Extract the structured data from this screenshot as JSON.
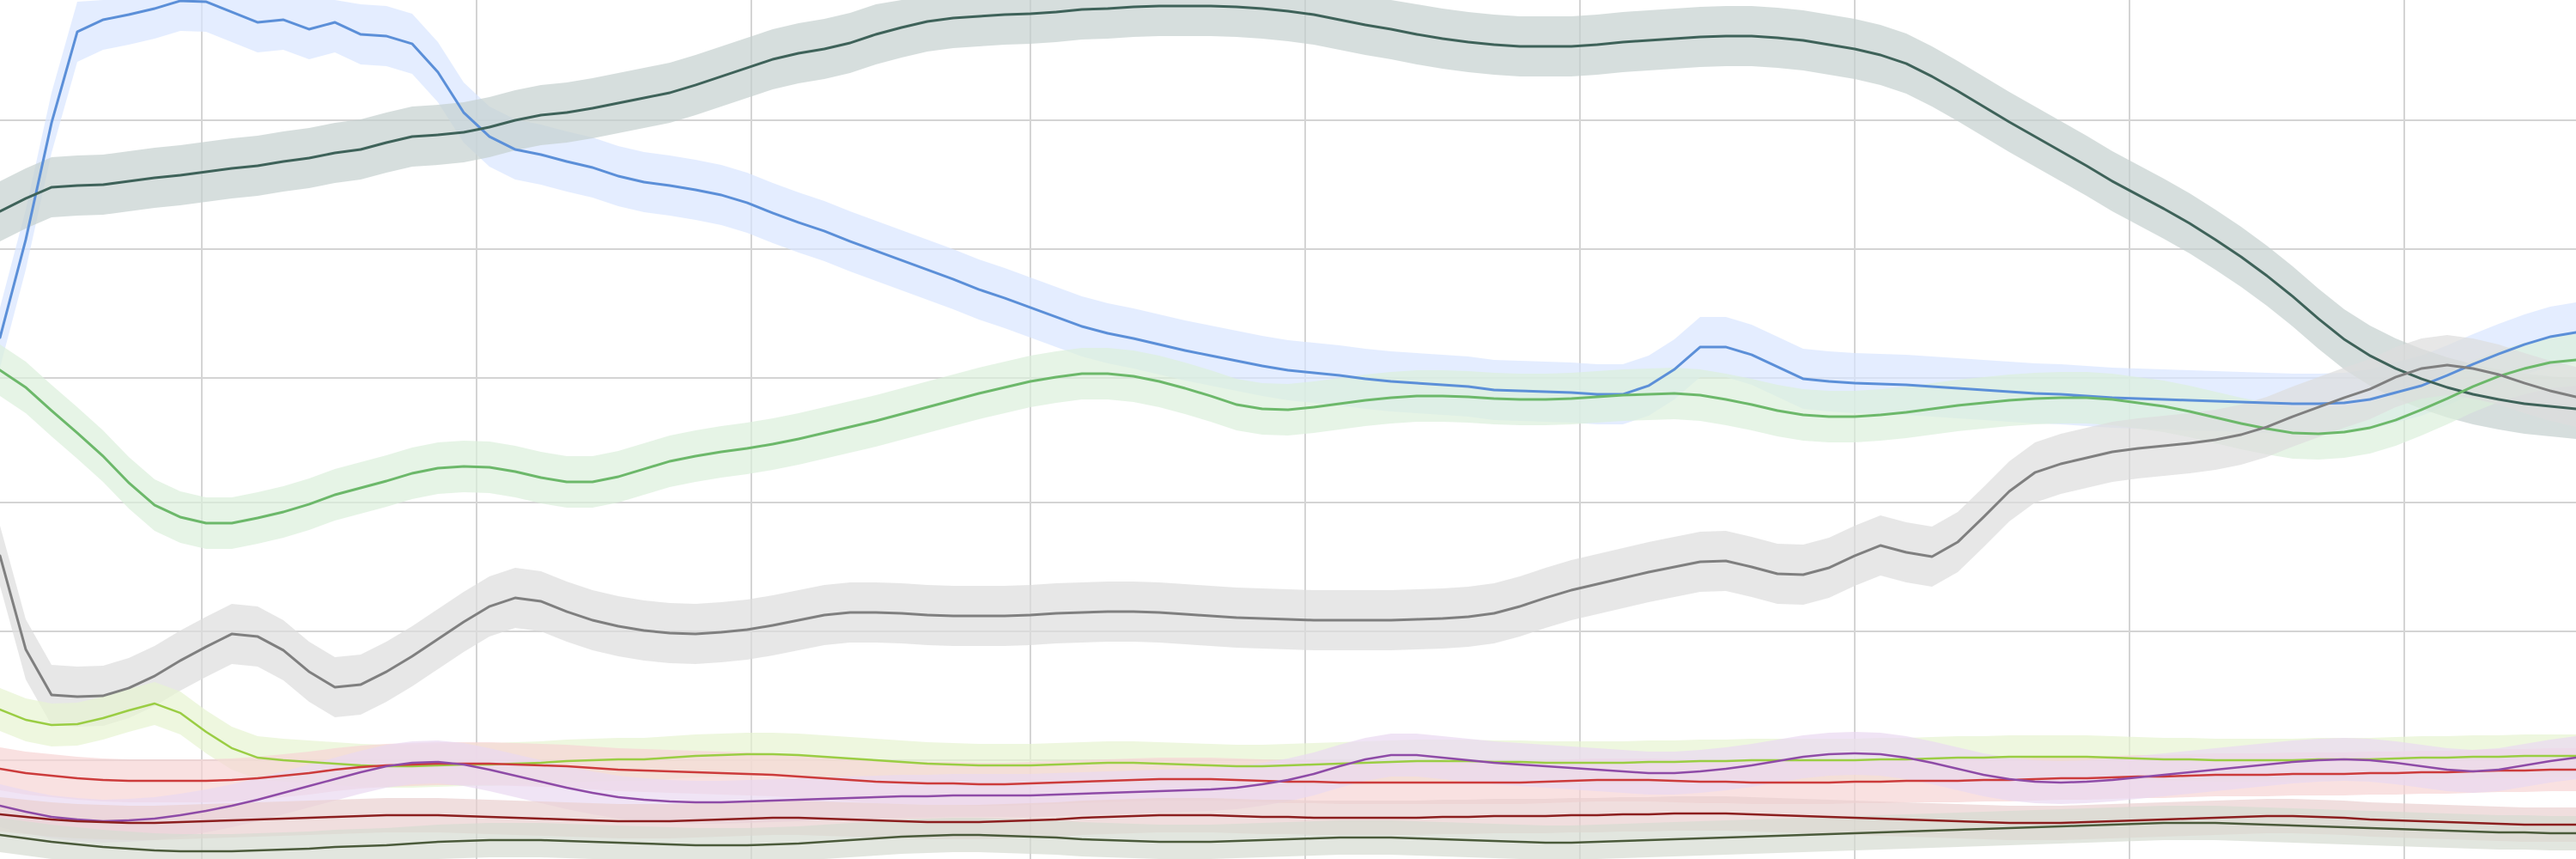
{
  "chart_data": {
    "type": "line",
    "title": "",
    "xlabel": "",
    "ylabel": "",
    "grid": true,
    "legend": "none",
    "xlim": [
      0,
      1000
    ],
    "ylim": [
      0,
      100
    ],
    "x": [
      0,
      10,
      20,
      30,
      40,
      50,
      60,
      70,
      80,
      90,
      100,
      110,
      120,
      130,
      140,
      150,
      160,
      170,
      180,
      190,
      200,
      210,
      220,
      230,
      240,
      250,
      260,
      270,
      280,
      290,
      300,
      310,
      320,
      330,
      340,
      350,
      360,
      370,
      380,
      390,
      400,
      410,
      420,
      430,
      440,
      450,
      460,
      470,
      480,
      490,
      500,
      510,
      520,
      530,
      540,
      550,
      560,
      570,
      580,
      590,
      600,
      610,
      620,
      630,
      640,
      650,
      660,
      670,
      680,
      690,
      700,
      710,
      720,
      730,
      740,
      750,
      760,
      770,
      780,
      790,
      800,
      810,
      820,
      830,
      840,
      850,
      860,
      870,
      880,
      890,
      900,
      910,
      920,
      930,
      940,
      950,
      960,
      970,
      980,
      990,
      1000
    ],
    "series": [
      {
        "name": "blue",
        "color": "#5B8FD8",
        "band_color": "#D9E5FF",
        "band_width": 7,
        "values": [
          60.7,
          72.1,
          85.7,
          96.3,
          97.7,
          98.3,
          99.0,
          99.9,
          99.8,
          98.6,
          97.4,
          97.7,
          96.6,
          97.4,
          96.0,
          95.8,
          94.9,
          91.6,
          86.9,
          84.1,
          82.6,
          82.0,
          81.2,
          80.5,
          79.5,
          78.8,
          78.4,
          77.9,
          77.3,
          76.4,
          75.2,
          74.1,
          73.1,
          71.9,
          70.8,
          69.7,
          68.6,
          67.5,
          66.3,
          65.3,
          64.2,
          63.1,
          62.0,
          61.2,
          60.6,
          59.9,
          59.2,
          58.6,
          58.0,
          57.4,
          56.9,
          56.6,
          56.3,
          55.9,
          55.6,
          55.4,
          55.2,
          55.0,
          54.6,
          54.5,
          54.4,
          54.3,
          54.1,
          54.1,
          55.1,
          57.0,
          59.6,
          59.6,
          58.7,
          57.3,
          55.9,
          55.6,
          55.4,
          55.3,
          55.2,
          55.0,
          54.8,
          54.6,
          54.4,
          54.2,
          54.1,
          53.9,
          53.7,
          53.6,
          53.5,
          53.4,
          53.3,
          53.2,
          53.1,
          53.0,
          53.0,
          53.1,
          53.5,
          54.3,
          55.1,
          56.3,
          57.6,
          58.8,
          59.9,
          60.8,
          61.3
        ]
      },
      {
        "name": "dark-teal",
        "color": "#3E6259",
        "band_color": "#C5D0CF",
        "band_width": 7,
        "values": [
          75.4,
          76.9,
          78.2,
          78.4,
          78.5,
          78.9,
          79.3,
          79.6,
          80.0,
          80.4,
          80.7,
          81.2,
          81.6,
          82.2,
          82.6,
          83.4,
          84.1,
          84.3,
          84.6,
          85.2,
          86.0,
          86.6,
          86.9,
          87.4,
          88.0,
          88.6,
          89.2,
          90.1,
          91.1,
          92.1,
          93.1,
          93.8,
          94.3,
          95.0,
          96.0,
          96.8,
          97.5,
          97.9,
          98.1,
          98.3,
          98.4,
          98.6,
          98.9,
          99.0,
          99.2,
          99.3,
          99.3,
          99.3,
          99.2,
          99.0,
          98.7,
          98.3,
          97.7,
          97.1,
          96.6,
          96.0,
          95.5,
          95.1,
          94.8,
          94.6,
          94.6,
          94.6,
          94.8,
          95.1,
          95.3,
          95.5,
          95.7,
          95.8,
          95.8,
          95.6,
          95.3,
          94.8,
          94.3,
          93.6,
          92.6,
          91.1,
          89.4,
          87.6,
          85.8,
          84.1,
          82.4,
          80.7,
          78.9,
          77.3,
          75.7,
          74.0,
          72.1,
          70.1,
          67.9,
          65.5,
          62.9,
          60.5,
          58.6,
          57.1,
          55.9,
          54.9,
          54.1,
          53.5,
          53.0,
          52.7,
          52.4
        ]
      },
      {
        "name": "green",
        "color": "#6CB86A",
        "band_color": "#DCEFDB",
        "band_width": 6,
        "values": [
          56.9,
          54.9,
          52.2,
          49.6,
          46.9,
          43.8,
          41.2,
          39.8,
          39.1,
          39.1,
          39.7,
          40.4,
          41.3,
          42.4,
          43.2,
          44.0,
          44.9,
          45.5,
          45.7,
          45.6,
          45.1,
          44.4,
          43.9,
          43.9,
          44.5,
          45.4,
          46.3,
          46.9,
          47.4,
          47.8,
          48.3,
          48.9,
          49.6,
          50.3,
          51.0,
          51.8,
          52.6,
          53.4,
          54.2,
          54.9,
          55.6,
          56.1,
          56.5,
          56.5,
          56.2,
          55.6,
          54.8,
          53.9,
          52.9,
          52.4,
          52.3,
          52.6,
          53.0,
          53.4,
          53.7,
          53.9,
          53.9,
          53.8,
          53.6,
          53.5,
          53.5,
          53.6,
          53.8,
          54.0,
          54.1,
          54.2,
          54.0,
          53.5,
          52.9,
          52.2,
          51.7,
          51.5,
          51.5,
          51.7,
          52.0,
          52.4,
          52.8,
          53.1,
          53.4,
          53.6,
          53.7,
          53.7,
          53.5,
          53.1,
          52.7,
          52.1,
          51.4,
          50.7,
          50.1,
          49.6,
          49.5,
          49.7,
          50.2,
          51.1,
          52.3,
          53.6,
          55.0,
          56.2,
          57.1,
          57.8,
          58.1
        ]
      },
      {
        "name": "gray",
        "color": "#7F7F7F",
        "band_color": "#DDDDDD",
        "band_width": 7,
        "values": [
          35.3,
          24.4,
          19.1,
          18.9,
          19.0,
          19.9,
          21.3,
          23.1,
          24.7,
          26.2,
          25.9,
          24.3,
          21.8,
          20.0,
          20.3,
          21.8,
          23.6,
          25.6,
          27.6,
          29.4,
          30.4,
          30.0,
          28.8,
          27.8,
          27.1,
          26.6,
          26.3,
          26.2,
          26.4,
          26.7,
          27.2,
          27.8,
          28.4,
          28.7,
          28.7,
          28.6,
          28.4,
          28.3,
          28.3,
          28.3,
          28.4,
          28.6,
          28.7,
          28.8,
          28.8,
          28.7,
          28.5,
          28.3,
          28.1,
          28.0,
          27.9,
          27.8,
          27.8,
          27.8,
          27.8,
          27.9,
          28.0,
          28.2,
          28.6,
          29.4,
          30.4,
          31.3,
          32.0,
          32.7,
          33.4,
          34.0,
          34.6,
          34.7,
          34.0,
          33.2,
          33.1,
          33.9,
          35.3,
          36.5,
          35.7,
          35.2,
          36.9,
          39.8,
          42.8,
          45.0,
          46.0,
          46.7,
          47.4,
          47.8,
          48.1,
          48.4,
          48.8,
          49.4,
          50.3,
          51.5,
          52.6,
          53.7,
          54.7,
          56.1,
          57.1,
          57.5,
          57.1,
          56.4,
          55.4,
          54.5,
          53.8
        ]
      },
      {
        "name": "yellow-green",
        "color": "#9ACD43",
        "band_color": "#E7F4D1",
        "band_width": 5,
        "values": [
          17.4,
          16.2,
          15.6,
          15.7,
          16.4,
          17.3,
          18.1,
          17.0,
          14.8,
          12.9,
          11.8,
          11.5,
          11.3,
          11.1,
          10.9,
          10.8,
          10.8,
          10.9,
          11.0,
          11.0,
          11.1,
          11.2,
          11.4,
          11.5,
          11.6,
          11.6,
          11.8,
          12.0,
          12.1,
          12.2,
          12.2,
          12.1,
          11.9,
          11.7,
          11.5,
          11.3,
          11.1,
          11.0,
          10.9,
          10.9,
          10.9,
          11.0,
          11.1,
          11.2,
          11.2,
          11.1,
          11.0,
          10.9,
          10.8,
          10.8,
          10.9,
          11.0,
          11.1,
          11.2,
          11.3,
          11.4,
          11.4,
          11.4,
          11.3,
          11.3,
          11.2,
          11.2,
          11.2,
          11.2,
          11.3,
          11.3,
          11.4,
          11.4,
          11.5,
          11.5,
          11.5,
          11.5,
          11.5,
          11.6,
          11.6,
          11.7,
          11.8,
          11.8,
          11.9,
          11.9,
          11.9,
          11.9,
          11.8,
          11.7,
          11.6,
          11.6,
          11.5,
          11.5,
          11.5,
          11.5,
          11.6,
          11.6,
          11.6,
          11.7,
          11.8,
          11.8,
          11.9,
          11.9,
          12.0,
          12.0,
          12.0
        ]
      },
      {
        "name": "red",
        "color": "#CC3B3B",
        "band_color": "#F7D4D4",
        "band_width": 5,
        "values": [
          10.5,
          10.0,
          9.7,
          9.4,
          9.2,
          9.1,
          9.1,
          9.1,
          9.1,
          9.2,
          9.4,
          9.7,
          10.0,
          10.4,
          10.7,
          10.9,
          11.0,
          11.1,
          11.1,
          11.1,
          11.0,
          10.9,
          10.8,
          10.6,
          10.4,
          10.3,
          10.2,
          10.1,
          10.0,
          9.9,
          9.8,
          9.6,
          9.4,
          9.2,
          9.0,
          8.9,
          8.8,
          8.8,
          8.7,
          8.7,
          8.8,
          8.9,
          9.0,
          9.1,
          9.2,
          9.3,
          9.3,
          9.3,
          9.2,
          9.1,
          9.0,
          9.0,
          8.9,
          8.9,
          8.9,
          8.9,
          8.9,
          8.9,
          8.9,
          8.9,
          9.0,
          9.1,
          9.2,
          9.2,
          9.2,
          9.1,
          9.0,
          9.0,
          8.9,
          8.9,
          8.9,
          8.9,
          9.0,
          9.0,
          9.1,
          9.1,
          9.1,
          9.2,
          9.2,
          9.3,
          9.4,
          9.4,
          9.5,
          9.6,
          9.6,
          9.7,
          9.8,
          9.8,
          9.8,
          9.9,
          9.9,
          9.9,
          10.0,
          10.0,
          10.1,
          10.1,
          10.2,
          10.3,
          10.3,
          10.4,
          10.4
        ]
      },
      {
        "name": "purple",
        "color": "#8E4BA7",
        "band_color": "#EAD8F1",
        "band_width": 5,
        "values": [
          6.2,
          5.5,
          4.9,
          4.6,
          4.4,
          4.5,
          4.7,
          5.1,
          5.6,
          6.2,
          6.9,
          7.7,
          8.5,
          9.3,
          10.1,
          10.8,
          11.2,
          11.3,
          11.0,
          10.4,
          9.7,
          9.0,
          8.3,
          7.7,
          7.2,
          6.9,
          6.7,
          6.6,
          6.6,
          6.7,
          6.8,
          6.9,
          7.0,
          7.1,
          7.2,
          7.3,
          7.3,
          7.4,
          7.4,
          7.4,
          7.4,
          7.5,
          7.6,
          7.7,
          7.8,
          7.9,
          8.0,
          8.1,
          8.3,
          8.7,
          9.2,
          9.9,
          10.8,
          11.6,
          12.1,
          12.1,
          11.8,
          11.5,
          11.2,
          11.0,
          10.8,
          10.6,
          10.4,
          10.2,
          10.0,
          10.0,
          10.2,
          10.5,
          10.9,
          11.4,
          11.9,
          12.2,
          12.3,
          12.2,
          11.8,
          11.2,
          10.5,
          9.8,
          9.3,
          9.0,
          8.9,
          9.0,
          9.2,
          9.5,
          9.8,
          10.1,
          10.4,
          10.7,
          11.0,
          11.3,
          11.5,
          11.6,
          11.5,
          11.2,
          10.8,
          10.4,
          10.2,
          10.4,
          10.9,
          11.4,
          11.8
        ]
      },
      {
        "name": "maroon",
        "color": "#8B1E1E",
        "band_color": "#EAD0D0",
        "band_width": 4,
        "values": [
          5.2,
          4.9,
          4.6,
          4.4,
          4.3,
          4.2,
          4.2,
          4.3,
          4.4,
          4.5,
          4.6,
          4.7,
          4.8,
          4.9,
          5.0,
          5.1,
          5.1,
          5.1,
          5.0,
          4.9,
          4.8,
          4.7,
          4.6,
          4.5,
          4.4,
          4.4,
          4.4,
          4.5,
          4.6,
          4.7,
          4.8,
          4.8,
          4.7,
          4.6,
          4.5,
          4.4,
          4.3,
          4.3,
          4.3,
          4.4,
          4.5,
          4.6,
          4.8,
          4.9,
          5.0,
          5.1,
          5.1,
          5.1,
          5.0,
          4.9,
          4.9,
          4.8,
          4.8,
          4.8,
          4.8,
          4.8,
          4.9,
          4.9,
          5.0,
          5.0,
          5.0,
          5.1,
          5.1,
          5.2,
          5.2,
          5.3,
          5.3,
          5.3,
          5.2,
          5.1,
          5.0,
          4.9,
          4.8,
          4.7,
          4.6,
          4.5,
          4.4,
          4.3,
          4.2,
          4.2,
          4.2,
          4.3,
          4.4,
          4.5,
          4.6,
          4.7,
          4.8,
          4.9,
          5.0,
          5.0,
          4.9,
          4.8,
          4.6,
          4.5,
          4.4,
          4.3,
          4.2,
          4.1,
          4.0,
          4.0,
          4.0
        ]
      },
      {
        "name": "dark-olive",
        "color": "#4A5A3A",
        "band_color": "#D6DCD1",
        "band_width": 4,
        "values": [
          2.8,
          2.4,
          2.0,
          1.7,
          1.4,
          1.2,
          1.0,
          0.9,
          0.9,
          0.9,
          1.0,
          1.1,
          1.2,
          1.4,
          1.5,
          1.6,
          1.8,
          2.0,
          2.1,
          2.2,
          2.2,
          2.2,
          2.1,
          2.0,
          1.9,
          1.8,
          1.7,
          1.6,
          1.6,
          1.6,
          1.7,
          1.8,
          2.0,
          2.2,
          2.4,
          2.6,
          2.7,
          2.8,
          2.8,
          2.7,
          2.6,
          2.5,
          2.3,
          2.2,
          2.1,
          2.0,
          2.0,
          2.0,
          2.1,
          2.2,
          2.3,
          2.4,
          2.5,
          2.5,
          2.5,
          2.4,
          2.3,
          2.2,
          2.1,
          2.0,
          1.9,
          1.9,
          2.0,
          2.1,
          2.2,
          2.3,
          2.4,
          2.5,
          2.6,
          2.7,
          2.8,
          2.9,
          3.0,
          3.1,
          3.2,
          3.3,
          3.4,
          3.5,
          3.6,
          3.7,
          3.8,
          3.9,
          4.0,
          4.1,
          4.2,
          4.2,
          4.2,
          4.1,
          4.0,
          3.9,
          3.8,
          3.7,
          3.6,
          3.5,
          3.4,
          3.3,
          3.2,
          3.1,
          3.1,
          3.0,
          3.0
        ]
      }
    ]
  }
}
